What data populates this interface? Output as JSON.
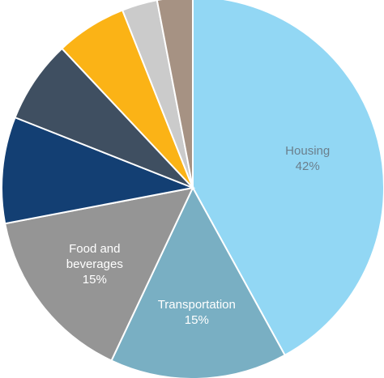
{
  "chart_data": {
    "type": "pie",
    "title": "",
    "slices": [
      {
        "label": "Housing",
        "value": 42,
        "value_label": "42%",
        "label_lines": [
          "Housing",
          "42%"
        ],
        "color": "#92d7f4",
        "text_color": "#6b7f8c"
      },
      {
        "label": "Transportation",
        "value": 15,
        "value_label": "15%",
        "label_lines": [
          "Transportation",
          "15%"
        ],
        "color": "#79afc3",
        "text_color": "#ffffff"
      },
      {
        "label": "Food and beverages",
        "value": 15,
        "value_label": "15%",
        "label_lines": [
          "Food and",
          "beverages",
          "15%"
        ],
        "color": "#959595",
        "text_color": "#ffffff"
      },
      {
        "label": "",
        "value": 9,
        "color": "#133f73"
      },
      {
        "label": "",
        "value": 7,
        "color": "#3f4f61"
      },
      {
        "label": "",
        "value": 6,
        "color": "#fbb316"
      },
      {
        "label": "",
        "value": 3,
        "color": "#cbcbcb"
      },
      {
        "label": "",
        "value": 3,
        "color": "#a69283"
      }
    ]
  }
}
